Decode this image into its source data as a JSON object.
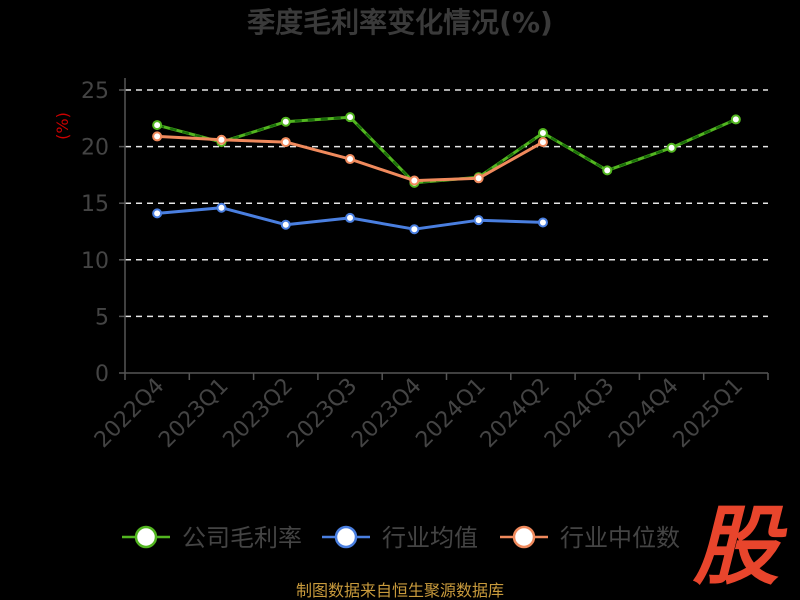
{
  "chart_data": {
    "type": "line",
    "title": "季度毛利率变化情况(%)",
    "ylabel": "(%)",
    "xlabel": "",
    "ylim": [
      0,
      25
    ],
    "yticks": [
      0,
      5,
      10,
      15,
      20,
      25
    ],
    "grid": true,
    "legend_position": "bottom",
    "categories": [
      "2022Q4",
      "2023Q1",
      "2023Q2",
      "2023Q3",
      "2023Q4",
      "2024Q1",
      "2024Q2",
      "2024Q3",
      "2024Q4",
      "2025Q1"
    ],
    "series": [
      {
        "name": "公司毛利率",
        "color": "#52b520",
        "values": [
          21.9,
          20.4,
          22.2,
          22.6,
          16.8,
          17.3,
          21.2,
          17.9,
          19.9,
          22.4
        ]
      },
      {
        "name": "行业均值",
        "color": "#4a7fe0",
        "values": [
          14.1,
          14.6,
          13.1,
          13.7,
          12.7,
          13.5,
          13.3,
          null,
          null,
          null
        ]
      },
      {
        "name": "行业中位数",
        "color": "#f08a5d",
        "values": [
          20.9,
          20.6,
          20.4,
          18.9,
          17.0,
          17.2,
          20.4,
          null,
          null,
          null
        ]
      }
    ]
  },
  "source_text": "制图数据来自恒生聚源数据库",
  "logo_text": "股"
}
